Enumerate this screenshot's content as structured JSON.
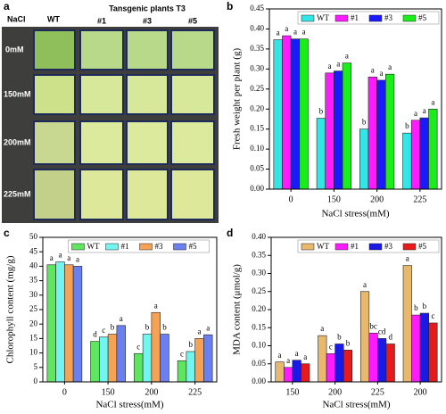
{
  "panel_a": {
    "panel_label": "a",
    "row_header": "NaCl",
    "control_header": "WT",
    "group_header": "Tansgenic plants T3",
    "columns": [
      "#1",
      "#3",
      "#5"
    ],
    "rows": [
      "0mM",
      "150mM",
      "200mM",
      "225mM"
    ]
  },
  "chart_data": [
    {
      "type": "bar",
      "panel_label": "b",
      "xlabel": "NaCl stress(mM)",
      "ylabel": "Fresh weight per plant (g)",
      "categories": [
        "0",
        "150",
        "200",
        "225"
      ],
      "legend": "upper right",
      "ylim": [
        0,
        0.45
      ],
      "yticks": [
        {
          "value": 0,
          "label": "0.00"
        },
        {
          "value": 0.05,
          "label": "0.05"
        },
        {
          "value": 0.1,
          "label": "0.10"
        },
        {
          "value": 0.15,
          "label": "0.15"
        },
        {
          "value": 0.2,
          "label": "0.20"
        },
        {
          "value": 0.25,
          "label": "0.25"
        },
        {
          "value": 0.3,
          "label": "0.30"
        },
        {
          "value": 0.35,
          "label": "0.35"
        },
        {
          "value": 0.4,
          "label": "0.40"
        },
        {
          "value": 0.45,
          "label": "0.45"
        }
      ],
      "series": [
        {
          "name": "WT",
          "color": "#33e6e6",
          "values": [
            0.373,
            0.177,
            0.15,
            0.14
          ],
          "letters": [
            "a",
            "b",
            "b",
            "b"
          ]
        },
        {
          "name": "#1",
          "color": "#ff1aff",
          "values": [
            0.383,
            0.29,
            0.28,
            0.172
          ],
          "letters": [
            "a",
            "a",
            "a",
            "a"
          ]
        },
        {
          "name": "#3",
          "color": "#1a1aff",
          "values": [
            0.375,
            0.295,
            0.272,
            0.178
          ],
          "letters": [
            "a",
            "a",
            "a",
            "a"
          ]
        },
        {
          "name": "#5",
          "color": "#1aee1a",
          "values": [
            0.375,
            0.315,
            0.287,
            0.2
          ],
          "letters": [
            "a",
            "a",
            "a",
            "a"
          ]
        }
      ]
    },
    {
      "type": "bar",
      "panel_label": "c",
      "xlabel": "NaCl stress(mM)",
      "ylabel": "Chlorophyll content (mg/g)",
      "categories": [
        "0",
        "150",
        "200",
        "225"
      ],
      "legend": "upper center",
      "ylim": [
        0,
        50
      ],
      "yticks": [
        0,
        5,
        10,
        15,
        20,
        25,
        30,
        35,
        40,
        45,
        50
      ],
      "series": [
        {
          "name": "WT",
          "color": "#5ee65e",
          "values": [
            40.5,
            14,
            9.8,
            7.3
          ],
          "letters": [
            "a",
            "d",
            "c",
            "c"
          ]
        },
        {
          "name": "#1",
          "color": "#70f5f0",
          "values": [
            41.5,
            15.5,
            16.5,
            10.5
          ],
          "letters": [
            "a",
            "c",
            "b",
            "b"
          ]
        },
        {
          "name": "#3",
          "color": "#f5a255",
          "values": [
            40.5,
            16.5,
            24,
            15
          ],
          "letters": [
            "a",
            "b",
            "a",
            "a"
          ]
        },
        {
          "name": "#5",
          "color": "#6a7ff0",
          "values": [
            40,
            19.5,
            16.5,
            16.3
          ],
          "letters": [
            "a",
            "a",
            "b",
            "a"
          ]
        }
      ]
    },
    {
      "type": "bar",
      "panel_label": "d",
      "xlabel": "NaCl stress(mM)",
      "ylabel": "MDA content (μmol/g)",
      "categories": [
        "150",
        "200",
        "225",
        "200"
      ],
      "legend": "upper right",
      "ylim": [
        0,
        0.4
      ],
      "yticks": [
        {
          "value": 0,
          "label": "0.00"
        },
        {
          "value": 0.05,
          "label": "0.05"
        },
        {
          "value": 0.1,
          "label": "0.10"
        },
        {
          "value": 0.15,
          "label": "0.15"
        },
        {
          "value": 0.2,
          "label": "0.20"
        },
        {
          "value": 0.25,
          "label": "0.25"
        },
        {
          "value": 0.3,
          "label": "0.30"
        },
        {
          "value": 0.35,
          "label": "0.35"
        },
        {
          "value": 0.4,
          "label": "0.40"
        }
      ],
      "series": [
        {
          "name": "WT",
          "color": "#e8b86d",
          "values": [
            0.055,
            0.128,
            0.25,
            0.322
          ],
          "letters": [
            "a",
            "a",
            "a",
            "a"
          ]
        },
        {
          "name": "#1",
          "color": "#ff1aff",
          "values": [
            0.04,
            0.078,
            0.135,
            0.185
          ],
          "letters": [
            "a",
            "c",
            "bc",
            "b"
          ]
        },
        {
          "name": "#3",
          "color": "#1a1ae6",
          "values": [
            0.06,
            0.105,
            0.12,
            0.19
          ],
          "letters": [
            "a",
            "b",
            "cd",
            "b"
          ]
        },
        {
          "name": "#5",
          "color": "#e61a1a",
          "values": [
            0.05,
            0.088,
            0.105,
            0.163
          ],
          "letters": [
            "a",
            "b",
            "d",
            "c"
          ]
        }
      ]
    }
  ]
}
